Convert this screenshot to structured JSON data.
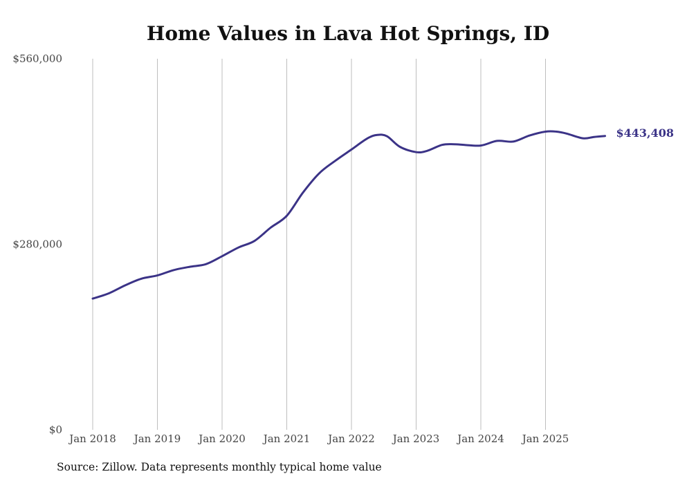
{
  "chart_data": {
    "type": "line",
    "title": "Home Values in Lava Hot Springs, ID",
    "xlabel": "",
    "ylabel": "",
    "ylim": [
      0,
      560000
    ],
    "y_ticks": [
      {
        "value": 0,
        "label": "$0"
      },
      {
        "value": 280000,
        "label": "$280,000"
      },
      {
        "value": 560000,
        "label": "$560,000"
      }
    ],
    "x_ticks": [
      {
        "value": 2018,
        "label": "Jan 2018"
      },
      {
        "value": 2019,
        "label": "Jan 2019"
      },
      {
        "value": 2020,
        "label": "Jan 2020"
      },
      {
        "value": 2021,
        "label": "Jan 2021"
      },
      {
        "value": 2022,
        "label": "Jan 2022"
      },
      {
        "value": 2023,
        "label": "Jan 2023"
      },
      {
        "value": 2024,
        "label": "Jan 2024"
      },
      {
        "value": 2025,
        "label": "Jan 2025"
      }
    ],
    "xlim": [
      2018,
      2026
    ],
    "grid": "vertical",
    "color": "#3b3387",
    "series": [
      {
        "name": "Typical home value",
        "end_label": "$443,408",
        "x": [
          2018.0,
          2018.25,
          2018.5,
          2018.75,
          2019.0,
          2019.25,
          2019.5,
          2019.75,
          2020.0,
          2020.25,
          2020.5,
          2020.75,
          2021.0,
          2021.25,
          2021.5,
          2021.75,
          2022.0,
          2022.25,
          2022.4,
          2022.55,
          2022.75,
          2023.0,
          2023.17,
          2023.4,
          2023.58,
          2023.75,
          2024.0,
          2024.25,
          2024.5,
          2024.75,
          2025.0,
          2025.17,
          2025.33,
          2025.58,
          2025.75,
          2025.92
        ],
        "values": [
          198000,
          206000,
          218000,
          228000,
          233000,
          241000,
          246000,
          250000,
          262000,
          275000,
          285000,
          305000,
          323000,
          358000,
          387000,
          406000,
          423000,
          440000,
          445000,
          443000,
          427000,
          419000,
          421000,
          430000,
          431000,
          430000,
          429000,
          436000,
          435000,
          444000,
          450000,
          450000,
          447000,
          440000,
          442000,
          443408
        ]
      }
    ]
  },
  "footer": {
    "source": "Source: Zillow. Data represents monthly typical home value"
  }
}
